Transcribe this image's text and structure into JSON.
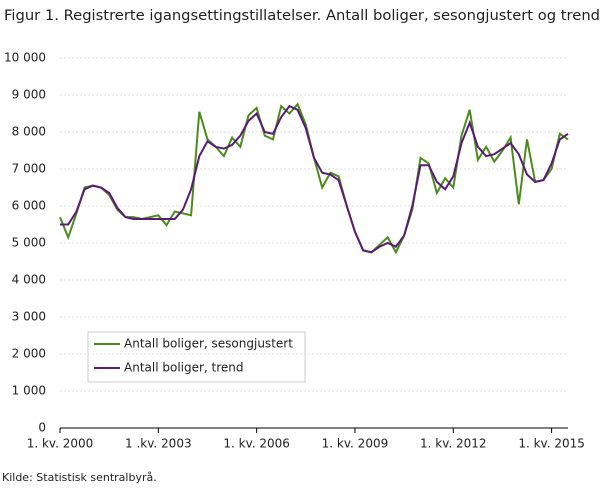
{
  "chart_data": {
    "type": "line",
    "title": "Figur 1. Registrerte igangsettingstillatelser. Antall boliger, sesongjustert og trend",
    "source": "Kilde: Statistisk sentralbyrå.",
    "categories": [
      "1. kv. 2000",
      null,
      null,
      null,
      null,
      null,
      null,
      null,
      null,
      null,
      null,
      null,
      "1 .kv. 2003",
      null,
      null,
      null,
      null,
      null,
      null,
      null,
      null,
      null,
      null,
      null,
      "1. kv. 2006",
      null,
      null,
      null,
      null,
      null,
      null,
      null,
      null,
      null,
      null,
      null,
      "1. kv. 2009",
      null,
      null,
      null,
      null,
      null,
      null,
      null,
      null,
      null,
      null,
      null,
      "1. kv. 2012",
      null,
      null,
      null,
      null,
      null,
      null,
      null,
      null,
      null,
      null,
      null,
      "1. kv. 2015",
      null,
      null
    ],
    "series": [
      {
        "name": "Antall boliger, sesongjustert",
        "color": "#4a8c1c",
        "values": [
          5700,
          5150,
          5800,
          6500,
          6550,
          6500,
          6300,
          5900,
          5700,
          5700,
          5650,
          5700,
          5750,
          5480,
          5850,
          5800,
          5750,
          8550,
          7800,
          7600,
          7350,
          7850,
          7600,
          8450,
          8650,
          7900,
          7800,
          8700,
          8500,
          8750,
          8200,
          7300,
          6500,
          6900,
          6800,
          6000,
          5300,
          4800,
          4750,
          4950,
          5150,
          4750,
          5200,
          5900,
          7300,
          7150,
          6350,
          6750,
          6500,
          7900,
          8600,
          7250,
          7600,
          7200,
          7500,
          7850,
          6050,
          7800,
          6650,
          6700,
          7000,
          7950,
          7800
        ]
      },
      {
        "name": "Antall boliger, trend",
        "color": "#5b1a78",
        "values": [
          5500,
          5500,
          5850,
          6450,
          6550,
          6500,
          6350,
          5950,
          5700,
          5650,
          5650,
          5650,
          5650,
          5650,
          5650,
          5900,
          6450,
          7350,
          7750,
          7600,
          7550,
          7650,
          7900,
          8300,
          8500,
          8000,
          7950,
          8400,
          8700,
          8600,
          8100,
          7300,
          6900,
          6850,
          6700,
          6000,
          5300,
          4800,
          4750,
          4900,
          5000,
          4900,
          5200,
          6000,
          7100,
          7100,
          6650,
          6450,
          6800,
          7700,
          8250,
          7600,
          7350,
          7400,
          7550,
          7700,
          7400,
          6850,
          6650,
          6700,
          7150,
          7800,
          7950
        ]
      }
    ],
    "ylim": [
      0,
      10000
    ],
    "yticks": [
      0,
      {
        "value": 1000,
        "label": "1 000"
      },
      {
        "value": 2000,
        "label": "2 000"
      },
      {
        "value": 3000,
        "label": "3 000"
      },
      {
        "value": 4000,
        "label": "4 000"
      },
      {
        "value": 5000,
        "label": "5 000"
      },
      {
        "value": 6000,
        "label": "6 000"
      },
      {
        "value": 7000,
        "label": "7 000"
      },
      {
        "value": 8000,
        "label": "8 000"
      },
      {
        "value": 9000,
        "label": "9 000"
      },
      {
        "value": 10000,
        "label": "10 000"
      }
    ],
    "grid": true
  }
}
